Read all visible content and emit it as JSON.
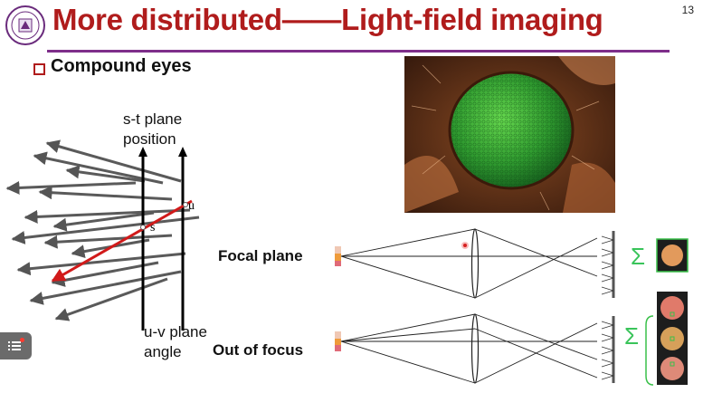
{
  "slide": {
    "title": "More distributed——Light-field imaging",
    "page_number": "13",
    "bullet": "Compound eyes",
    "labels": {
      "st_plane_line1": "s-t plane",
      "st_plane_line2": "position",
      "uv_plane_line1": "u-v plane",
      "uv_plane_line2": "angle",
      "point_s": "s",
      "point_u": "u",
      "focal_plane": "Focal plane",
      "out_of_focus": "Out of focus",
      "sum_symbol": "Σ"
    },
    "colors": {
      "title": "#b01c1c",
      "rule": "#7e2e8a",
      "highlight_ray": "#d11a1a",
      "sum_green": "#39c45a"
    }
  }
}
